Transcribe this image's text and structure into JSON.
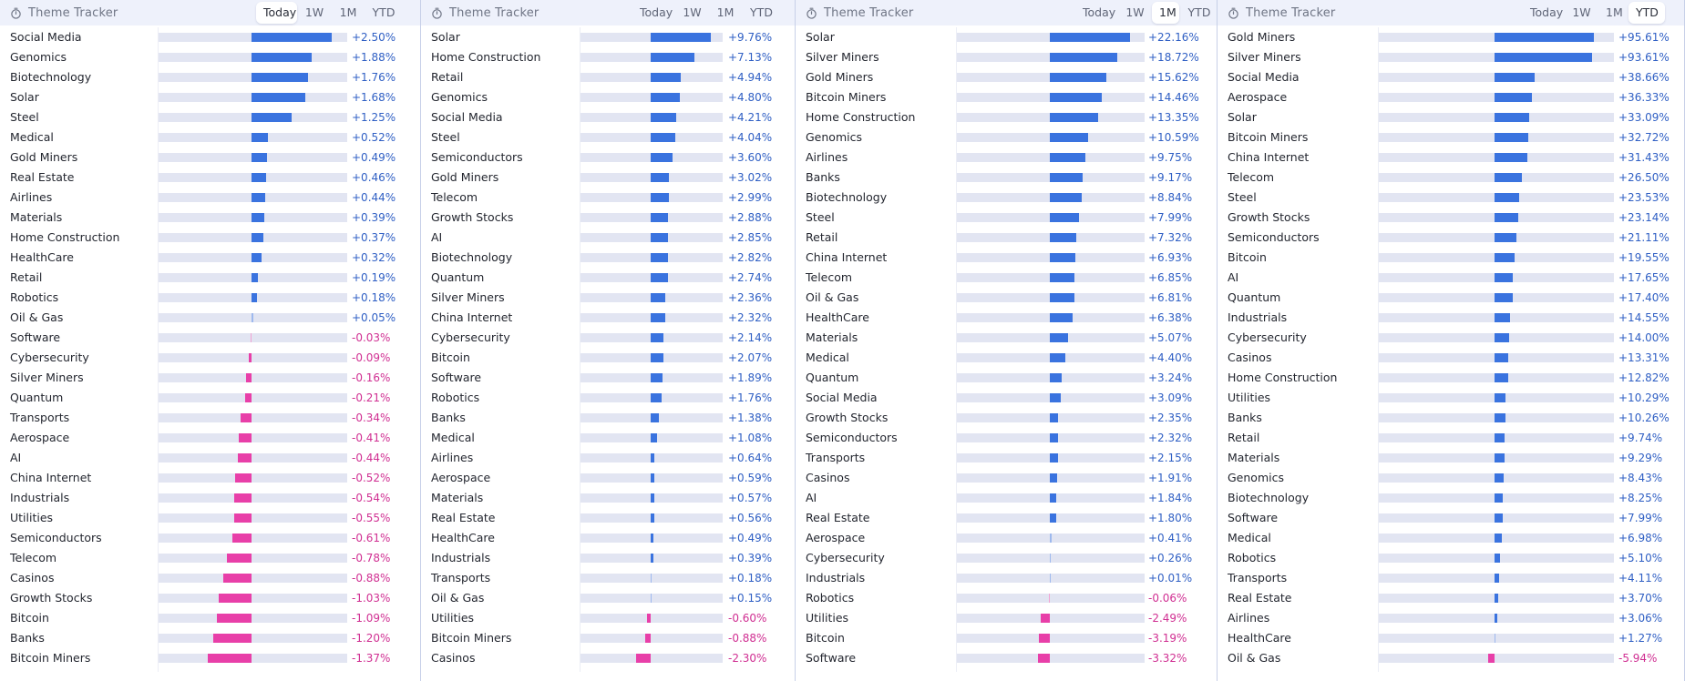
{
  "colors": {
    "positive": "#3a73df",
    "negative": "#e83fa8",
    "positive_text": "#2f5fc4",
    "negative_text": "#d02f92"
  },
  "icon": "stopwatch-icon",
  "panels": [
    {
      "title": "Theme Tracker",
      "tabs": [
        "Today",
        "1W",
        "1M",
        "YTD"
      ],
      "active_tab": "Today",
      "scale_max": 2.5,
      "rows": [
        {
          "label": "Social Media",
          "value": 2.5,
          "display": "+2.50%"
        },
        {
          "label": "Genomics",
          "value": 1.88,
          "display": "+1.88%"
        },
        {
          "label": "Biotechnology",
          "value": 1.76,
          "display": "+1.76%"
        },
        {
          "label": "Solar",
          "value": 1.68,
          "display": "+1.68%"
        },
        {
          "label": "Steel",
          "value": 1.25,
          "display": "+1.25%"
        },
        {
          "label": "Medical",
          "value": 0.52,
          "display": "+0.52%"
        },
        {
          "label": "Gold Miners",
          "value": 0.49,
          "display": "+0.49%"
        },
        {
          "label": "Real Estate",
          "value": 0.46,
          "display": "+0.46%"
        },
        {
          "label": "Airlines",
          "value": 0.44,
          "display": "+0.44%"
        },
        {
          "label": "Materials",
          "value": 0.39,
          "display": "+0.39%"
        },
        {
          "label": "Home Construction",
          "value": 0.37,
          "display": "+0.37%"
        },
        {
          "label": "HealthCare",
          "value": 0.32,
          "display": "+0.32%"
        },
        {
          "label": "Retail",
          "value": 0.19,
          "display": "+0.19%"
        },
        {
          "label": "Robotics",
          "value": 0.18,
          "display": "+0.18%"
        },
        {
          "label": "Oil & Gas",
          "value": 0.05,
          "display": "+0.05%"
        },
        {
          "label": "Software",
          "value": -0.03,
          "display": "-0.03%"
        },
        {
          "label": "Cybersecurity",
          "value": -0.09,
          "display": "-0.09%"
        },
        {
          "label": "Silver Miners",
          "value": -0.16,
          "display": "-0.16%"
        },
        {
          "label": "Quantum",
          "value": -0.21,
          "display": "-0.21%"
        },
        {
          "label": "Transports",
          "value": -0.34,
          "display": "-0.34%"
        },
        {
          "label": "Aerospace",
          "value": -0.41,
          "display": "-0.41%"
        },
        {
          "label": "AI",
          "value": -0.44,
          "display": "-0.44%"
        },
        {
          "label": "China Internet",
          "value": -0.52,
          "display": "-0.52%"
        },
        {
          "label": "Industrials",
          "value": -0.54,
          "display": "-0.54%"
        },
        {
          "label": "Utilities",
          "value": -0.55,
          "display": "-0.55%"
        },
        {
          "label": "Semiconductors",
          "value": -0.61,
          "display": "-0.61%"
        },
        {
          "label": "Telecom",
          "value": -0.78,
          "display": "-0.78%"
        },
        {
          "label": "Casinos",
          "value": -0.88,
          "display": "-0.88%"
        },
        {
          "label": "Growth Stocks",
          "value": -1.03,
          "display": "-1.03%"
        },
        {
          "label": "Bitcoin",
          "value": -1.09,
          "display": "-1.09%"
        },
        {
          "label": "Banks",
          "value": -1.2,
          "display": "-1.20%"
        },
        {
          "label": "Bitcoin Miners",
          "value": -1.37,
          "display": "-1.37%"
        }
      ]
    },
    {
      "title": "Theme Tracker",
      "tabs": [
        "Today",
        "1W",
        "1M",
        "YTD"
      ],
      "active_tab": "",
      "scale_max": 9.76,
      "rows": [
        {
          "label": "Solar",
          "value": 9.76,
          "display": "+9.76%"
        },
        {
          "label": "Home Construction",
          "value": 7.13,
          "display": "+7.13%"
        },
        {
          "label": "Retail",
          "value": 4.94,
          "display": "+4.94%"
        },
        {
          "label": "Genomics",
          "value": 4.8,
          "display": "+4.80%"
        },
        {
          "label": "Social Media",
          "value": 4.21,
          "display": "+4.21%"
        },
        {
          "label": "Steel",
          "value": 4.04,
          "display": "+4.04%"
        },
        {
          "label": "Semiconductors",
          "value": 3.6,
          "display": "+3.60%"
        },
        {
          "label": "Gold Miners",
          "value": 3.02,
          "display": "+3.02%"
        },
        {
          "label": "Telecom",
          "value": 2.99,
          "display": "+2.99%"
        },
        {
          "label": "Growth Stocks",
          "value": 2.88,
          "display": "+2.88%"
        },
        {
          "label": "AI",
          "value": 2.85,
          "display": "+2.85%"
        },
        {
          "label": "Biotechnology",
          "value": 2.82,
          "display": "+2.82%"
        },
        {
          "label": "Quantum",
          "value": 2.74,
          "display": "+2.74%"
        },
        {
          "label": "Silver Miners",
          "value": 2.36,
          "display": "+2.36%"
        },
        {
          "label": "China Internet",
          "value": 2.32,
          "display": "+2.32%"
        },
        {
          "label": "Cybersecurity",
          "value": 2.14,
          "display": "+2.14%"
        },
        {
          "label": "Bitcoin",
          "value": 2.07,
          "display": "+2.07%"
        },
        {
          "label": "Software",
          "value": 1.89,
          "display": "+1.89%"
        },
        {
          "label": "Robotics",
          "value": 1.76,
          "display": "+1.76%"
        },
        {
          "label": "Banks",
          "value": 1.38,
          "display": "+1.38%"
        },
        {
          "label": "Medical",
          "value": 1.08,
          "display": "+1.08%"
        },
        {
          "label": "Airlines",
          "value": 0.64,
          "display": "+0.64%"
        },
        {
          "label": "Aerospace",
          "value": 0.59,
          "display": "+0.59%"
        },
        {
          "label": "Materials",
          "value": 0.57,
          "display": "+0.57%"
        },
        {
          "label": "Real Estate",
          "value": 0.56,
          "display": "+0.56%"
        },
        {
          "label": "HealthCare",
          "value": 0.49,
          "display": "+0.49%"
        },
        {
          "label": "Industrials",
          "value": 0.39,
          "display": "+0.39%"
        },
        {
          "label": "Transports",
          "value": 0.18,
          "display": "+0.18%"
        },
        {
          "label": "Oil & Gas",
          "value": 0.15,
          "display": "+0.15%"
        },
        {
          "label": "Utilities",
          "value": -0.6,
          "display": "-0.60%"
        },
        {
          "label": "Bitcoin Miners",
          "value": -0.88,
          "display": "-0.88%"
        },
        {
          "label": "Casinos",
          "value": -2.3,
          "display": "-2.30%"
        }
      ]
    },
    {
      "title": "Theme Tracker",
      "tabs": [
        "Today",
        "1W",
        "1M",
        "YTD"
      ],
      "active_tab": "1M",
      "scale_max": 22.16,
      "rows": [
        {
          "label": "Solar",
          "value": 22.16,
          "display": "+22.16%"
        },
        {
          "label": "Silver Miners",
          "value": 18.72,
          "display": "+18.72%"
        },
        {
          "label": "Gold Miners",
          "value": 15.62,
          "display": "+15.62%"
        },
        {
          "label": "Bitcoin Miners",
          "value": 14.46,
          "display": "+14.46%"
        },
        {
          "label": "Home Construction",
          "value": 13.35,
          "display": "+13.35%"
        },
        {
          "label": "Genomics",
          "value": 10.59,
          "display": "+10.59%"
        },
        {
          "label": "Airlines",
          "value": 9.75,
          "display": "+9.75%"
        },
        {
          "label": "Banks",
          "value": 9.17,
          "display": "+9.17%"
        },
        {
          "label": "Biotechnology",
          "value": 8.84,
          "display": "+8.84%"
        },
        {
          "label": "Steel",
          "value": 7.99,
          "display": "+7.99%"
        },
        {
          "label": "Retail",
          "value": 7.32,
          "display": "+7.32%"
        },
        {
          "label": "China Internet",
          "value": 6.93,
          "display": "+6.93%"
        },
        {
          "label": "Telecom",
          "value": 6.85,
          "display": "+6.85%"
        },
        {
          "label": "Oil & Gas",
          "value": 6.81,
          "display": "+6.81%"
        },
        {
          "label": "HealthCare",
          "value": 6.38,
          "display": "+6.38%"
        },
        {
          "label": "Materials",
          "value": 5.07,
          "display": "+5.07%"
        },
        {
          "label": "Medical",
          "value": 4.4,
          "display": "+4.40%"
        },
        {
          "label": "Quantum",
          "value": 3.24,
          "display": "+3.24%"
        },
        {
          "label": "Social Media",
          "value": 3.09,
          "display": "+3.09%"
        },
        {
          "label": "Growth Stocks",
          "value": 2.35,
          "display": "+2.35%"
        },
        {
          "label": "Semiconductors",
          "value": 2.32,
          "display": "+2.32%"
        },
        {
          "label": "Transports",
          "value": 2.15,
          "display": "+2.15%"
        },
        {
          "label": "Casinos",
          "value": 1.91,
          "display": "+1.91%"
        },
        {
          "label": "AI",
          "value": 1.84,
          "display": "+1.84%"
        },
        {
          "label": "Real Estate",
          "value": 1.8,
          "display": "+1.80%"
        },
        {
          "label": "Aerospace",
          "value": 0.41,
          "display": "+0.41%"
        },
        {
          "label": "Cybersecurity",
          "value": 0.26,
          "display": "+0.26%"
        },
        {
          "label": "Industrials",
          "value": 0.01,
          "display": "+0.01%"
        },
        {
          "label": "Robotics",
          "value": -0.06,
          "display": "-0.06%"
        },
        {
          "label": "Utilities",
          "value": -2.49,
          "display": "-2.49%"
        },
        {
          "label": "Bitcoin",
          "value": -3.19,
          "display": "-3.19%"
        },
        {
          "label": "Software",
          "value": -3.32,
          "display": "-3.32%"
        }
      ]
    },
    {
      "title": "Theme Tracker",
      "tabs": [
        "Today",
        "1W",
        "1M",
        "YTD"
      ],
      "active_tab": "YTD",
      "scale_max": 95.61,
      "rows": [
        {
          "label": "Gold Miners",
          "value": 95.61,
          "display": "+95.61%"
        },
        {
          "label": "Silver Miners",
          "value": 93.61,
          "display": "+93.61%"
        },
        {
          "label": "Social Media",
          "value": 38.66,
          "display": "+38.66%"
        },
        {
          "label": "Aerospace",
          "value": 36.33,
          "display": "+36.33%"
        },
        {
          "label": "Solar",
          "value": 33.09,
          "display": "+33.09%"
        },
        {
          "label": "Bitcoin Miners",
          "value": 32.72,
          "display": "+32.72%"
        },
        {
          "label": "China Internet",
          "value": 31.43,
          "display": "+31.43%"
        },
        {
          "label": "Telecom",
          "value": 26.5,
          "display": "+26.50%"
        },
        {
          "label": "Steel",
          "value": 23.53,
          "display": "+23.53%"
        },
        {
          "label": "Growth Stocks",
          "value": 23.14,
          "display": "+23.14%"
        },
        {
          "label": "Semiconductors",
          "value": 21.11,
          "display": "+21.11%"
        },
        {
          "label": "Bitcoin",
          "value": 19.55,
          "display": "+19.55%"
        },
        {
          "label": "AI",
          "value": 17.65,
          "display": "+17.65%"
        },
        {
          "label": "Quantum",
          "value": 17.4,
          "display": "+17.40%"
        },
        {
          "label": "Industrials",
          "value": 14.55,
          "display": "+14.55%"
        },
        {
          "label": "Cybersecurity",
          "value": 14.0,
          "display": "+14.00%"
        },
        {
          "label": "Casinos",
          "value": 13.31,
          "display": "+13.31%"
        },
        {
          "label": "Home Construction",
          "value": 12.82,
          "display": "+12.82%"
        },
        {
          "label": "Utilities",
          "value": 10.29,
          "display": "+10.29%"
        },
        {
          "label": "Banks",
          "value": 10.26,
          "display": "+10.26%"
        },
        {
          "label": "Retail",
          "value": 9.74,
          "display": "+9.74%"
        },
        {
          "label": "Materials",
          "value": 9.29,
          "display": "+9.29%"
        },
        {
          "label": "Genomics",
          "value": 8.43,
          "display": "+8.43%"
        },
        {
          "label": "Biotechnology",
          "value": 8.25,
          "display": "+8.25%"
        },
        {
          "label": "Software",
          "value": 7.99,
          "display": "+7.99%"
        },
        {
          "label": "Medical",
          "value": 6.98,
          "display": "+6.98%"
        },
        {
          "label": "Robotics",
          "value": 5.1,
          "display": "+5.10%"
        },
        {
          "label": "Transports",
          "value": 4.11,
          "display": "+4.11%"
        },
        {
          "label": "Real Estate",
          "value": 3.7,
          "display": "+3.70%"
        },
        {
          "label": "Airlines",
          "value": 3.06,
          "display": "+3.06%"
        },
        {
          "label": "HealthCare",
          "value": 1.27,
          "display": "+1.27%"
        },
        {
          "label": "Oil & Gas",
          "value": -5.94,
          "display": "-5.94%"
        }
      ]
    }
  ]
}
